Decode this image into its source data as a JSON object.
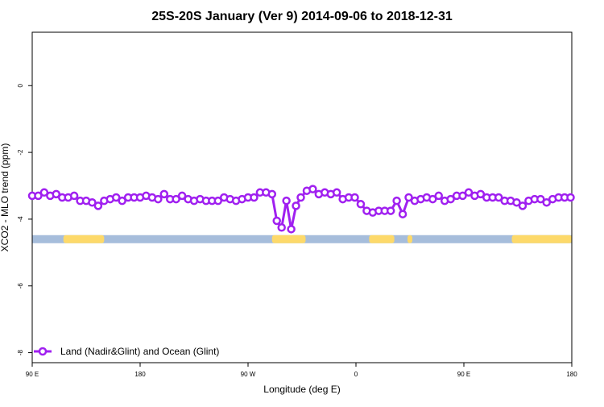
{
  "chart_data": {
    "type": "line",
    "title": "25S-20S January (Ver 9)   2014-09-06 to 2018-12-31",
    "xlabel": "Longitude (deg E)",
    "ylabel": "XCO2 - MLO trend (ppm)",
    "xlim": [
      90,
      540
    ],
    "ylim": [
      -8.3,
      1.6
    ],
    "x_ticks": [
      {
        "value": 90,
        "label": "90 E"
      },
      {
        "value": 180,
        "label": "180"
      },
      {
        "value": 270,
        "label": "90 W"
      },
      {
        "value": 360,
        "label": "0"
      },
      {
        "value": 450,
        "label": "90 E"
      },
      {
        "value": 540,
        "label": "180"
      }
    ],
    "y_ticks": [
      {
        "value": 0,
        "label": "0"
      },
      {
        "value": -2,
        "label": "-2"
      },
      {
        "value": -4,
        "label": "-4"
      },
      {
        "value": -6,
        "label": "-6"
      },
      {
        "value": -8,
        "label": "-8"
      }
    ],
    "grid": false,
    "legend_position": "bottom-left",
    "surface_band": {
      "y_center": -4.6,
      "ocean_color": "#a6bddb",
      "land_color": "#fdd96a",
      "land_ranges_x": [
        [
          116,
          150
        ],
        [
          290,
          318
        ],
        [
          371,
          392
        ],
        [
          403,
          407
        ],
        [
          490,
          546
        ]
      ]
    },
    "series": [
      {
        "name": "Land (Nadir&Glint) and Ocean (Glint)",
        "color": "#a020f0",
        "points": [
          {
            "x": 90,
            "y": -3.3
          },
          {
            "x": 95,
            "y": -3.3
          },
          {
            "x": 100,
            "y": -3.2
          },
          {
            "x": 105,
            "y": -3.3
          },
          {
            "x": 110,
            "y": -3.25
          },
          {
            "x": 115,
            "y": -3.35
          },
          {
            "x": 120,
            "y": -3.35
          },
          {
            "x": 125,
            "y": -3.3
          },
          {
            "x": 130,
            "y": -3.45
          },
          {
            "x": 135,
            "y": -3.45
          },
          {
            "x": 140,
            "y": -3.5
          },
          {
            "x": 145,
            "y": -3.6
          },
          {
            "x": 150,
            "y": -3.45
          },
          {
            "x": 155,
            "y": -3.4
          },
          {
            "x": 160,
            "y": -3.35
          },
          {
            "x": 165,
            "y": -3.45
          },
          {
            "x": 170,
            "y": -3.35
          },
          {
            "x": 175,
            "y": -3.35
          },
          {
            "x": 180,
            "y": -3.35
          },
          {
            "x": 185,
            "y": -3.3
          },
          {
            "x": 190,
            "y": -3.35
          },
          {
            "x": 195,
            "y": -3.4
          },
          {
            "x": 200,
            "y": -3.25
          },
          {
            "x": 205,
            "y": -3.4
          },
          {
            "x": 210,
            "y": -3.4
          },
          {
            "x": 215,
            "y": -3.3
          },
          {
            "x": 220,
            "y": -3.4
          },
          {
            "x": 225,
            "y": -3.45
          },
          {
            "x": 230,
            "y": -3.4
          },
          {
            "x": 235,
            "y": -3.45
          },
          {
            "x": 240,
            "y": -3.45
          },
          {
            "x": 245,
            "y": -3.45
          },
          {
            "x": 250,
            "y": -3.35
          },
          {
            "x": 255,
            "y": -3.4
          },
          {
            "x": 260,
            "y": -3.45
          },
          {
            "x": 265,
            "y": -3.4
          },
          {
            "x": 270,
            "y": -3.35
          },
          {
            "x": 275,
            "y": -3.35
          },
          {
            "x": 280,
            "y": -3.2
          },
          {
            "x": 285,
            "y": -3.2
          },
          {
            "x": 290,
            "y": -3.25
          },
          {
            "x": 294,
            "y": -4.05
          },
          {
            "x": 298,
            "y": -4.25
          },
          {
            "x": 302,
            "y": -3.45
          },
          {
            "x": 306,
            "y": -4.3
          },
          {
            "x": 310,
            "y": -3.6
          },
          {
            "x": 314,
            "y": -3.35
          },
          {
            "x": 319,
            "y": -3.15
          },
          {
            "x": 324,
            "y": -3.1
          },
          {
            "x": 329,
            "y": -3.25
          },
          {
            "x": 334,
            "y": -3.2
          },
          {
            "x": 339,
            "y": -3.25
          },
          {
            "x": 344,
            "y": -3.2
          },
          {
            "x": 349,
            "y": -3.4
          },
          {
            "x": 354,
            "y": -3.35
          },
          {
            "x": 359,
            "y": -3.35
          },
          {
            "x": 364,
            "y": -3.55
          },
          {
            "x": 369,
            "y": -3.75
          },
          {
            "x": 374,
            "y": -3.8
          },
          {
            "x": 379,
            "y": -3.75
          },
          {
            "x": 384,
            "y": -3.75
          },
          {
            "x": 389,
            "y": -3.75
          },
          {
            "x": 394,
            "y": -3.45
          },
          {
            "x": 399,
            "y": -3.85
          },
          {
            "x": 404,
            "y": -3.35
          },
          {
            "x": 409,
            "y": -3.45
          },
          {
            "x": 414,
            "y": -3.4
          },
          {
            "x": 419,
            "y": -3.35
          },
          {
            "x": 424,
            "y": -3.4
          },
          {
            "x": 429,
            "y": -3.3
          },
          {
            "x": 434,
            "y": -3.45
          },
          {
            "x": 439,
            "y": -3.4
          },
          {
            "x": 444,
            "y": -3.3
          },
          {
            "x": 449,
            "y": -3.3
          },
          {
            "x": 454,
            "y": -3.2
          },
          {
            "x": 459,
            "y": -3.3
          },
          {
            "x": 464,
            "y": -3.25
          },
          {
            "x": 469,
            "y": -3.35
          },
          {
            "x": 474,
            "y": -3.35
          },
          {
            "x": 479,
            "y": -3.35
          },
          {
            "x": 484,
            "y": -3.45
          },
          {
            "x": 489,
            "y": -3.45
          },
          {
            "x": 494,
            "y": -3.5
          },
          {
            "x": 499,
            "y": -3.6
          },
          {
            "x": 504,
            "y": -3.45
          },
          {
            "x": 509,
            "y": -3.4
          },
          {
            "x": 514,
            "y": -3.4
          },
          {
            "x": 519,
            "y": -3.5
          },
          {
            "x": 524,
            "y": -3.4
          },
          {
            "x": 529,
            "y": -3.35
          },
          {
            "x": 534,
            "y": -3.35
          },
          {
            "x": 539,
            "y": -3.35
          }
        ]
      }
    ]
  }
}
